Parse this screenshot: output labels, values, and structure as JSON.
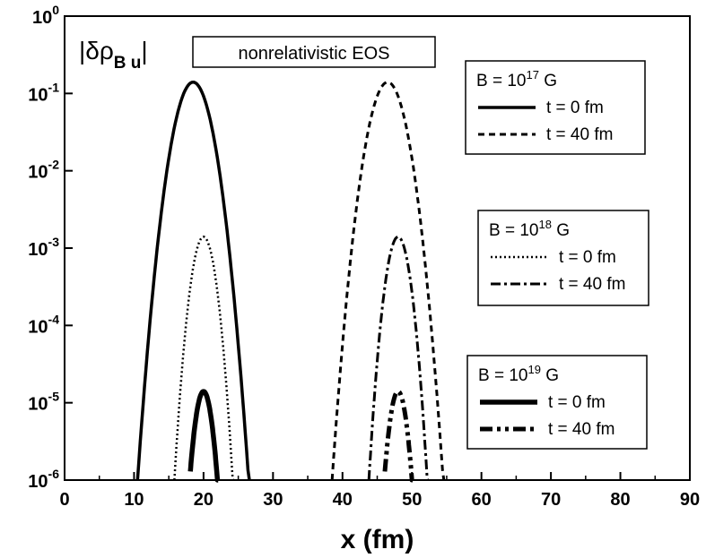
{
  "chart_data": {
    "type": "line",
    "title": "",
    "xlabel": "x (fm)",
    "ylabel": "|δρ",
    "ylabel_subscript": "B u",
    "ylabel_close": "|",
    "annotation": "nonrelativistic EOS",
    "xlim": [
      0,
      90
    ],
    "ylim": [
      1e-06,
      1
    ],
    "yscale": "log",
    "x_ticks": [
      "0",
      "10",
      "20",
      "30",
      "40",
      "50",
      "60",
      "70",
      "80",
      "90"
    ],
    "y_ticks": [
      {
        "base": "10",
        "exp": "0"
      },
      {
        "base": "10",
        "exp": "-1"
      },
      {
        "base": "10",
        "exp": "-2"
      },
      {
        "base": "10",
        "exp": "-3"
      },
      {
        "base": "10",
        "exp": "-4"
      },
      {
        "base": "10",
        "exp": "-5"
      },
      {
        "base": "10",
        "exp": "-6"
      }
    ],
    "grid": false,
    "legend_groups": [
      {
        "title_pre": "B = 10",
        "title_exp": "17",
        "title_post": " G",
        "entries": [
          {
            "label": "t = 0 fm",
            "style": "solid"
          },
          {
            "label": "t = 40 fm",
            "style": "dashed"
          }
        ]
      },
      {
        "title_pre": "B = 10",
        "title_exp": "18",
        "title_post": " G",
        "entries": [
          {
            "label": "t = 0 fm",
            "style": "dotted"
          },
          {
            "label": "t = 40 fm",
            "style": "dashdot"
          }
        ]
      },
      {
        "title_pre": "B = 10",
        "title_exp": "19",
        "title_post": " G",
        "entries": [
          {
            "label": "t = 0 fm",
            "style": "solid-thick"
          },
          {
            "label": "t = 40 fm",
            "style": "dashdotdot-thick"
          }
        ]
      }
    ],
    "series": [
      {
        "group": 0,
        "entry": 0,
        "style": "solid",
        "peak_x": 18.5,
        "peak_y": 0.14,
        "half_width": 8.0,
        "x_range": [
          10.5,
          26.6
        ]
      },
      {
        "group": 0,
        "entry": 1,
        "style": "dashed",
        "peak_x": 46.5,
        "peak_y": 0.14,
        "half_width": 8.0,
        "x_range": [
          38.5,
          54.6
        ]
      },
      {
        "group": 1,
        "entry": 0,
        "style": "dotted",
        "peak_x": 20.0,
        "peak_y": 0.0014,
        "half_width": 4.2,
        "x_range": [
          15.8,
          24.3
        ]
      },
      {
        "group": 1,
        "entry": 1,
        "style": "dashdot",
        "peak_x": 48.0,
        "peak_y": 0.0014,
        "half_width": 4.2,
        "x_range": [
          43.8,
          52.3
        ]
      },
      {
        "group": 2,
        "entry": 0,
        "style": "solid-thick",
        "peak_x": 20.0,
        "peak_y": 1.4e-05,
        "half_width": 2.0,
        "x_range": [
          18.1,
          22.1
        ]
      },
      {
        "group": 2,
        "entry": 1,
        "style": "dashdotdot-thick",
        "peak_x": 48.0,
        "peak_y": 1.4e-05,
        "half_width": 2.0,
        "x_range": [
          46.1,
          50.1
        ]
      }
    ]
  }
}
